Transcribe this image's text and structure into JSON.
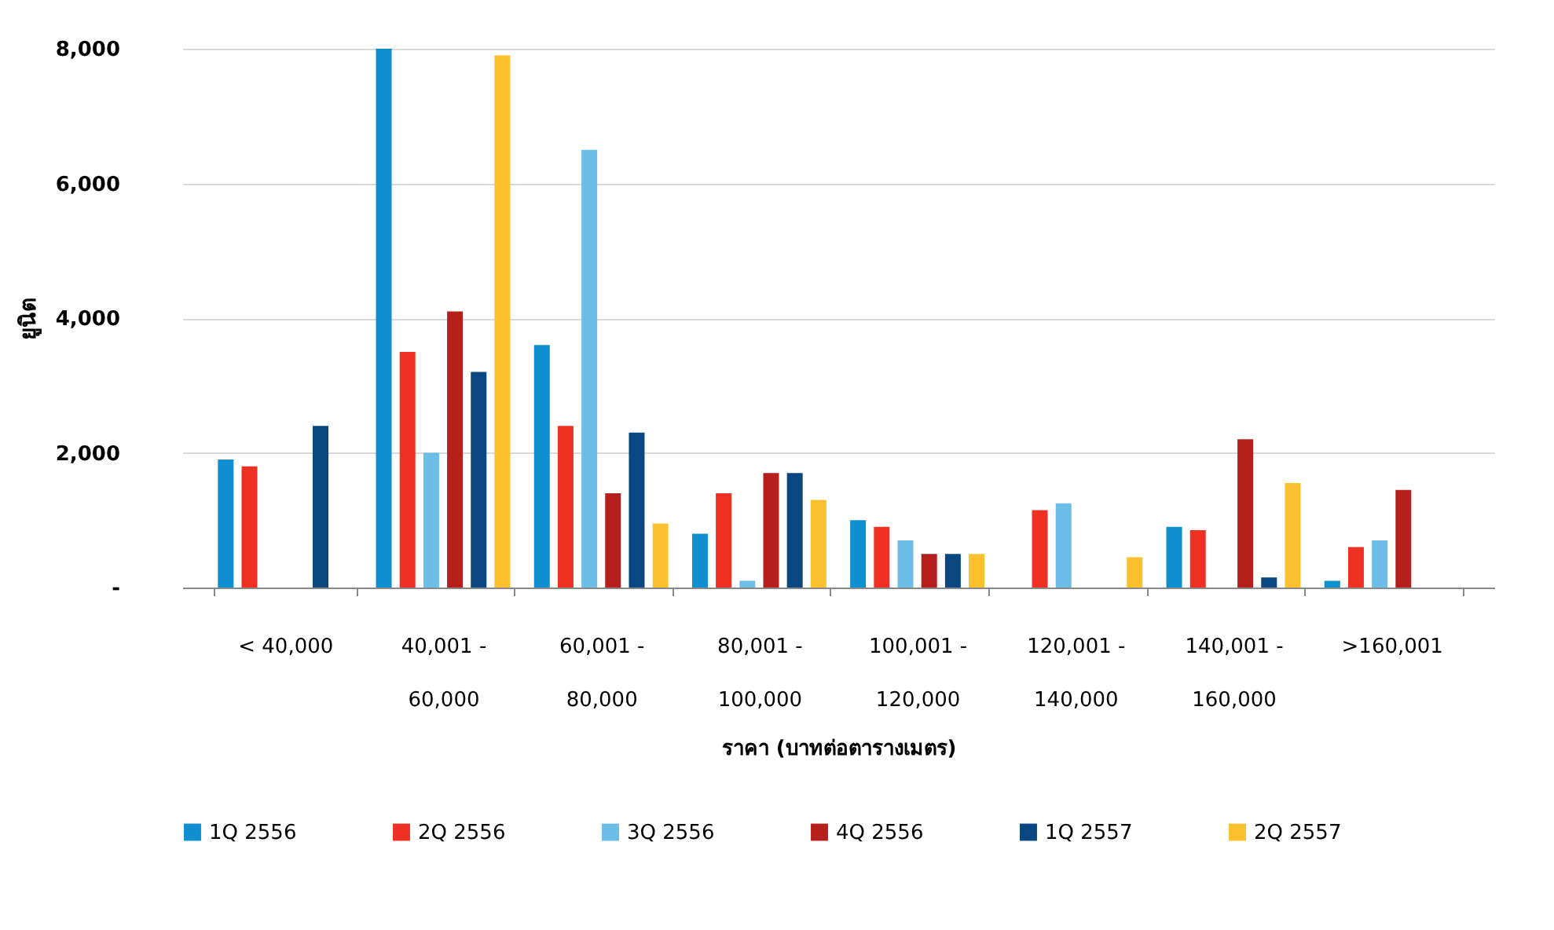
{
  "chart_data": {
    "type": "bar",
    "xlabel": "ราคา (บาทต่อตารางเมตร)",
    "ylabel": "ยูนิต",
    "categories": [
      "< 40,000",
      "40,001 -\n60,000",
      "60,001 -\n80,000",
      "80,001 -\n100,000",
      "100,001 -\n120,000",
      "120,001 -\n140,000",
      "140,001 -\n160,000",
      ">160,001"
    ],
    "series": [
      {
        "name": "1Q 2556",
        "color": "#0f8ed0",
        "values": [
          1900,
          8000,
          3600,
          800,
          1000,
          null,
          900,
          100
        ]
      },
      {
        "name": "2Q 2556",
        "color": "#ef3124",
        "values": [
          1800,
          3500,
          2400,
          1400,
          900,
          1150,
          850,
          600
        ]
      },
      {
        "name": "3Q 2556",
        "color": "#6cbde8",
        "values": [
          null,
          2000,
          6500,
          100,
          700,
          1250,
          null,
          700
        ]
      },
      {
        "name": "4Q 2556",
        "color": "#b5201c",
        "values": [
          null,
          4100,
          1400,
          1700,
          500,
          null,
          2200,
          1450
        ]
      },
      {
        "name": "1Q 2557",
        "color": "#0a467f",
        "values": [
          2400,
          3200,
          2300,
          1700,
          500,
          null,
          150,
          null
        ]
      },
      {
        "name": "2Q 2557",
        "color": "#fbc02d",
        "values": [
          null,
          7900,
          950,
          1300,
          500,
          450,
          1550,
          null
        ]
      }
    ],
    "ylim": [
      0,
      8000
    ],
    "yticks": [
      {
        "value": 0,
        "label": "-"
      },
      {
        "value": 2000,
        "label": "2,000"
      },
      {
        "value": 4000,
        "label": "4,000"
      },
      {
        "value": 6000,
        "label": "6,000"
      },
      {
        "value": 8000,
        "label": "8,000"
      }
    ],
    "grid": "y",
    "legend": "bottom"
  }
}
